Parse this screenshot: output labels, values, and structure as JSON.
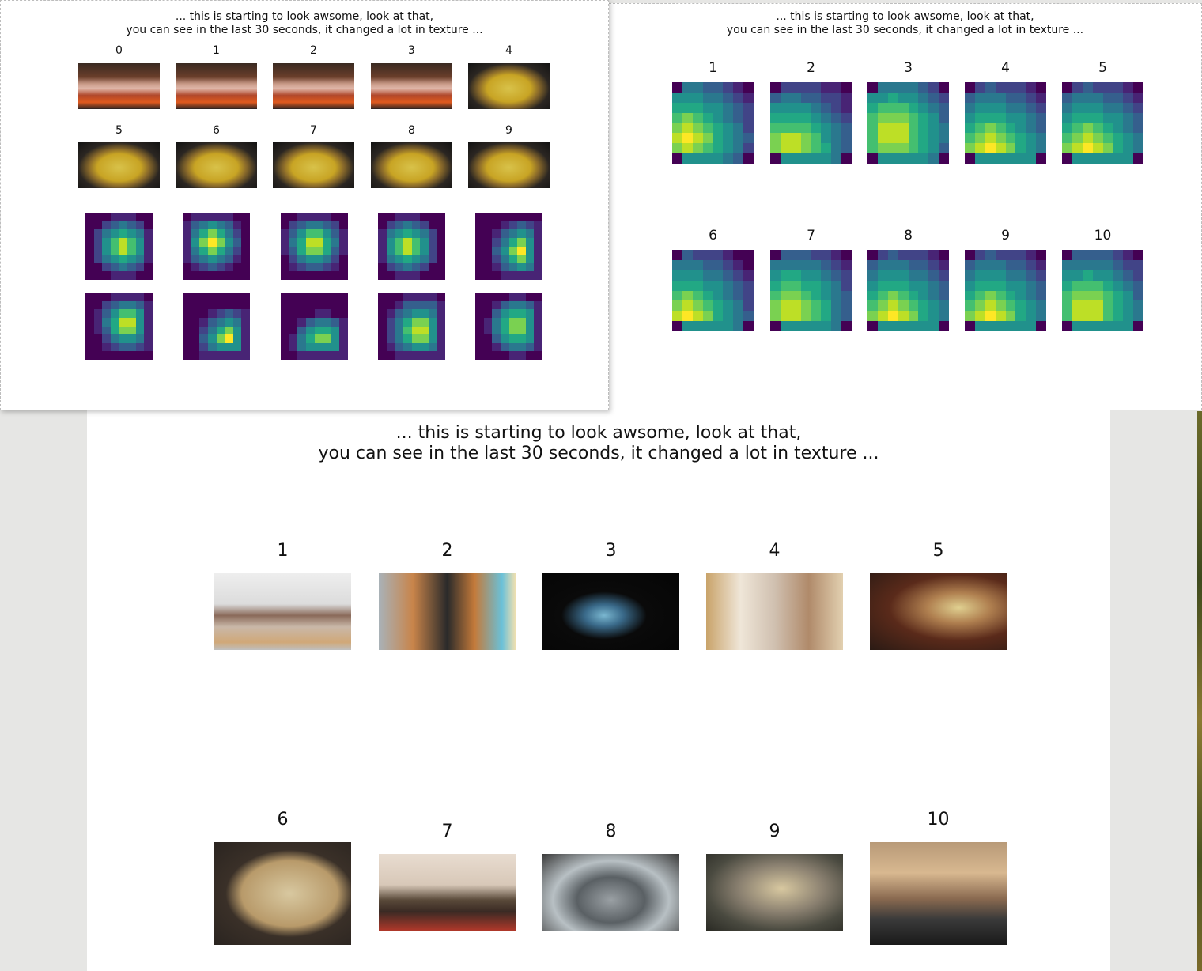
{
  "caption": {
    "line1": "... this is starting to look awsome, look at that,",
    "line2": "you can see in the last 30 seconds, it changed a lot in texture ..."
  },
  "window_a": {
    "frame_labels": [
      "0",
      "1",
      "2",
      "3",
      "4",
      "5",
      "6",
      "7",
      "8",
      "9"
    ]
  },
  "window_b": {
    "labels": [
      "1",
      "2",
      "3",
      "4",
      "5",
      "6",
      "7",
      "8",
      "9",
      "10"
    ]
  },
  "window_c": {
    "labels": [
      "1",
      "2",
      "3",
      "4",
      "5",
      "6",
      "7",
      "8",
      "9",
      "10"
    ]
  },
  "colors": {
    "viridis_dark": "#440154",
    "viridis_blue": "#3b528b",
    "viridis_teal": "#21918c",
    "viridis_green": "#5ec962",
    "viridis_yellow": "#fde725"
  }
}
